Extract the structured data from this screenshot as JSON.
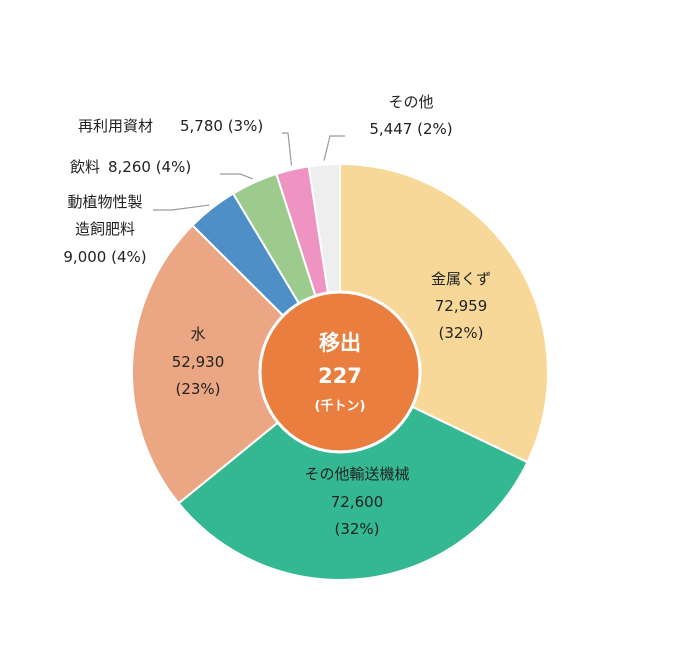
{
  "chart_data": {
    "type": "pie",
    "subtype": "donut",
    "center": {
      "line1": "移出",
      "line2": "227",
      "line3": "(千トン)"
    },
    "slices": [
      {
        "label": "金属くず",
        "value_text": "72,959",
        "percent_text": "(32%)",
        "value": 72959,
        "color": "#F7D898"
      },
      {
        "label": "その他輸送機械",
        "value_text": "72,600",
        "percent_text": "(32%)",
        "value": 72600,
        "color": "#33B891"
      },
      {
        "label": "水",
        "value_text": "52,930",
        "percent_text": "(23%)",
        "value": 52930,
        "color": "#EBA783"
      },
      {
        "label_lines": [
          "動植物性製",
          "造飼肥料"
        ],
        "value_text": "9,000 (4%)",
        "value": 9000,
        "color": "#4F8FC8"
      },
      {
        "label": "飲料",
        "value_text": "8,260 (4%)",
        "value": 8260,
        "color": "#9DCB8E"
      },
      {
        "label": "再利用資材",
        "value_text": "5,780 (3%)",
        "value": 5780,
        "color": "#EF93C2"
      },
      {
        "label": "その他",
        "value_text": "5,447 (2%)",
        "value": 5447,
        "color": "#EEEEEE"
      }
    ],
    "center_color": "#E97E3F"
  }
}
